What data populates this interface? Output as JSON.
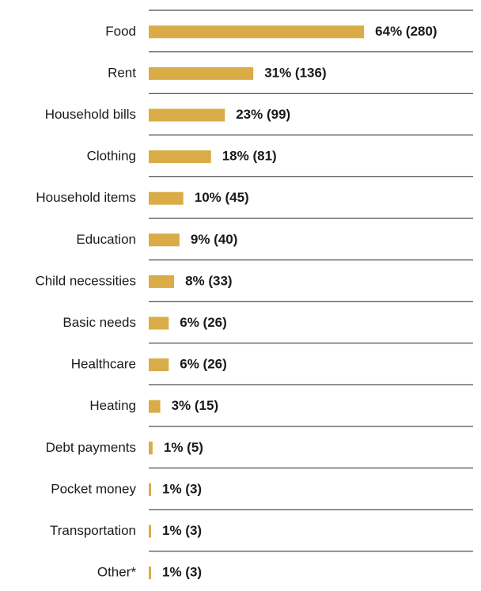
{
  "chart_data": {
    "type": "bar",
    "orientation": "horizontal",
    "categories": [
      "Food",
      "Rent",
      "Household bills",
      "Clothing",
      "Household items",
      "Education",
      "Child necessities",
      "Basic needs",
      "Healthcare",
      "Heating",
      "Debt payments",
      "Pocket money",
      "Transportation",
      "Other*"
    ],
    "values": [
      280,
      136,
      99,
      81,
      45,
      40,
      33,
      26,
      26,
      15,
      5,
      3,
      3,
      3
    ],
    "value_labels": [
      "64% (280)",
      "31% (136)",
      "23% (99)",
      "18% (81)",
      "10% (45)",
      "9% (40)",
      "8% (33)",
      "6% (26)",
      "6% (26)",
      "3% (15)",
      "1% (5)",
      "1% (3)",
      "1% (3)",
      "1% (3)"
    ],
    "color": "#d9ac47"
  }
}
